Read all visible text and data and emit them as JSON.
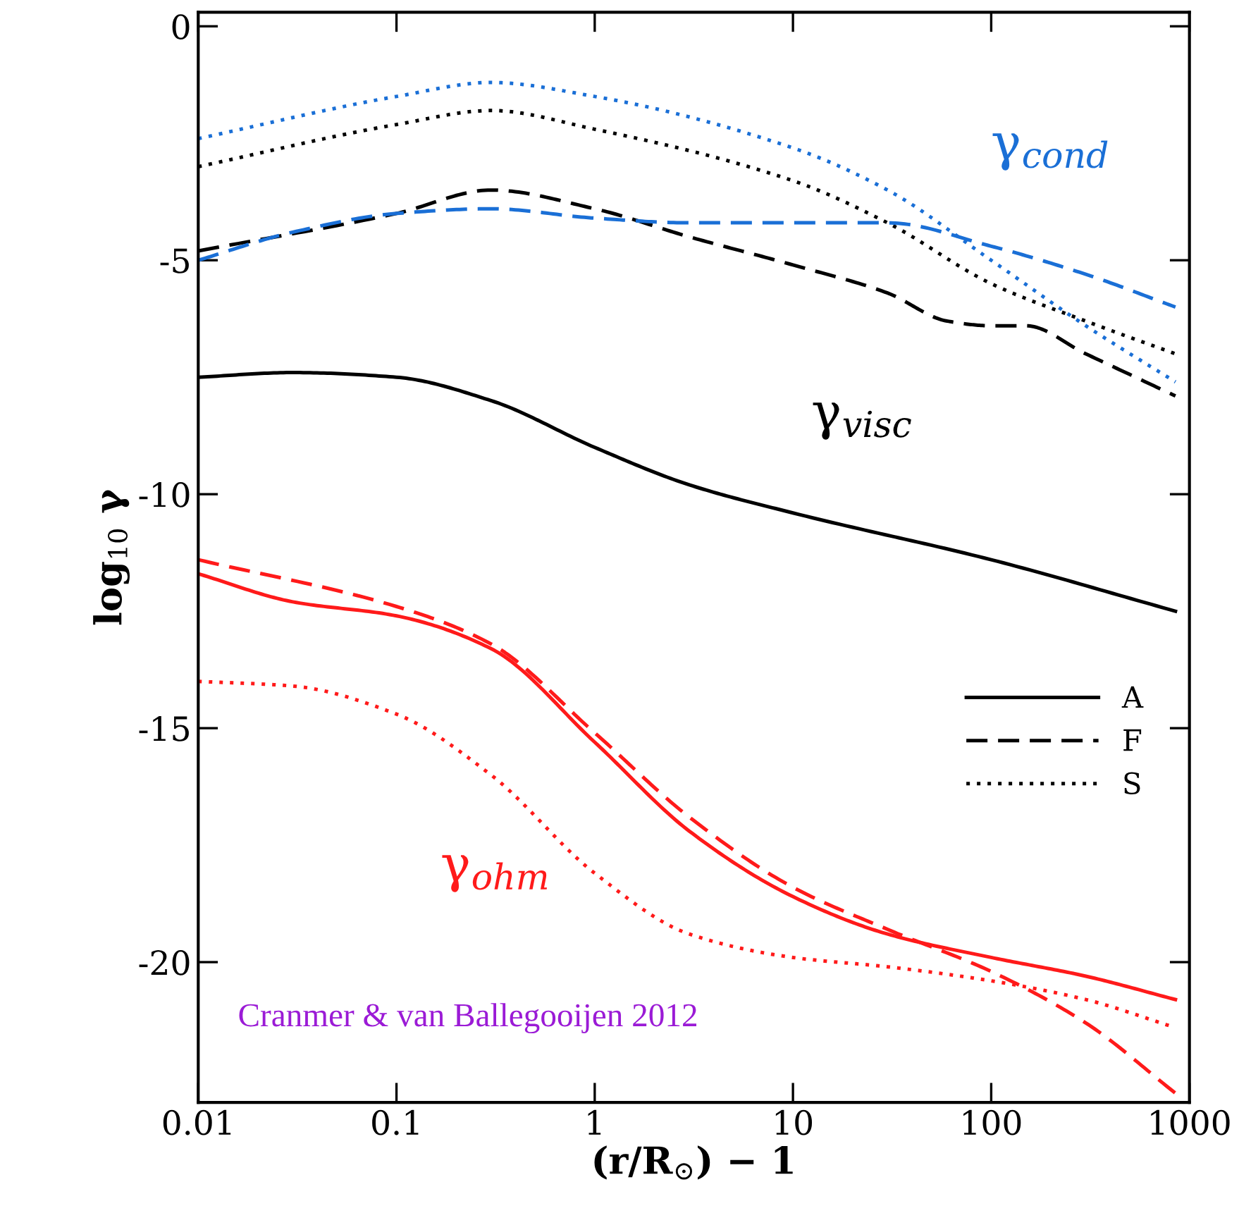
{
  "chart_data": {
    "type": "line",
    "xlabel": "(r/R$_{⊙}$) − 1",
    "ylabel": "log$_{10}$ γ",
    "log": "x",
    "xlim": [
      0.01,
      1000
    ],
    "ylim": [
      -23,
      0.3
    ],
    "xticks": [
      0.01,
      0.1,
      1,
      10,
      100,
      1000
    ],
    "yticks": [
      -20,
      -15,
      -10,
      -5,
      0
    ],
    "grid": false,
    "legend": "right",
    "series": [
      {
        "name": "A",
        "color": "#000000",
        "line_style": "solid",
        "x": [
          0.01,
          0.03,
          0.1,
          0.3,
          1,
          3,
          10,
          100,
          850
        ],
        "values": [
          -7.5,
          -7.4,
          -7.5,
          -8.0,
          -9.0,
          -9.8,
          -10.4,
          -11.4,
          -12.5
        ]
      },
      {
        "name": "F",
        "color": "#000000",
        "line_style": "dashed",
        "x": [
          0.01,
          0.1,
          0.3,
          1,
          3,
          10,
          30,
          60,
          100,
          150,
          300,
          850
        ],
        "values": [
          -4.8,
          -4.0,
          -3.5,
          -3.9,
          -4.5,
          -5.1,
          -5.7,
          -6.3,
          -6.4,
          -6.4,
          -7.0,
          -7.9
        ]
      },
      {
        "name": "S",
        "color": "#000000",
        "line_style": "dotted",
        "x": [
          0.01,
          0.1,
          0.3,
          1,
          10,
          30,
          100,
          300,
          850
        ],
        "values": [
          -3.0,
          -2.1,
          -1.8,
          -2.2,
          -3.3,
          -4.2,
          -5.5,
          -6.3,
          -7.0
        ]
      },
      {
        "color": "#1a6fd6",
        "line_style": "dashed",
        "x": [
          0.01,
          0.03,
          0.1,
          0.3,
          1,
          3,
          10,
          30,
          100,
          300,
          850
        ],
        "values": [
          -5.0,
          -4.4,
          -4.0,
          -3.9,
          -4.1,
          -4.2,
          -4.2,
          -4.2,
          -4.7,
          -5.3,
          -6.0
        ]
      },
      {
        "color": "#1a6fd6",
        "line_style": "dotted",
        "x": [
          0.01,
          0.1,
          0.3,
          1,
          10,
          30,
          100,
          300,
          850
        ],
        "values": [
          -2.4,
          -1.5,
          -1.2,
          -1.5,
          -2.6,
          -3.5,
          -5.0,
          -6.4,
          -7.6
        ]
      },
      {
        "color": "#ff1a1a",
        "line_style": "solid",
        "x": [
          0.01,
          0.03,
          0.1,
          0.3,
          1,
          3,
          10,
          30,
          100,
          300,
          850
        ],
        "values": [
          -11.7,
          -12.3,
          -12.6,
          -13.3,
          -15.3,
          -17.2,
          -18.6,
          -19.4,
          -19.9,
          -20.3,
          -20.8
        ]
      },
      {
        "color": "#ff1a1a",
        "line_style": "dashed",
        "x": [
          0.01,
          0.1,
          0.3,
          1,
          3,
          10,
          30,
          100,
          300,
          850
        ],
        "values": [
          -11.4,
          -12.4,
          -13.2,
          -15.1,
          -16.9,
          -18.4,
          -19.3,
          -20.2,
          -21.3,
          -22.8
        ]
      },
      {
        "color": "#ff1a1a",
        "line_style": "dotted",
        "x": [
          0.01,
          0.03,
          0.1,
          0.3,
          1,
          3,
          10,
          30,
          100,
          300,
          850
        ],
        "values": [
          -14.0,
          -14.1,
          -14.7,
          -16.0,
          -18.1,
          -19.4,
          -19.9,
          -20.1,
          -20.4,
          -20.8,
          -21.4
        ]
      }
    ],
    "annotations": [
      "γ$_{cond}$",
      "γ$_{visc}$",
      "γ$_{ohm}$",
      "Cranmer & van Ballegooijen 2012"
    ]
  }
}
